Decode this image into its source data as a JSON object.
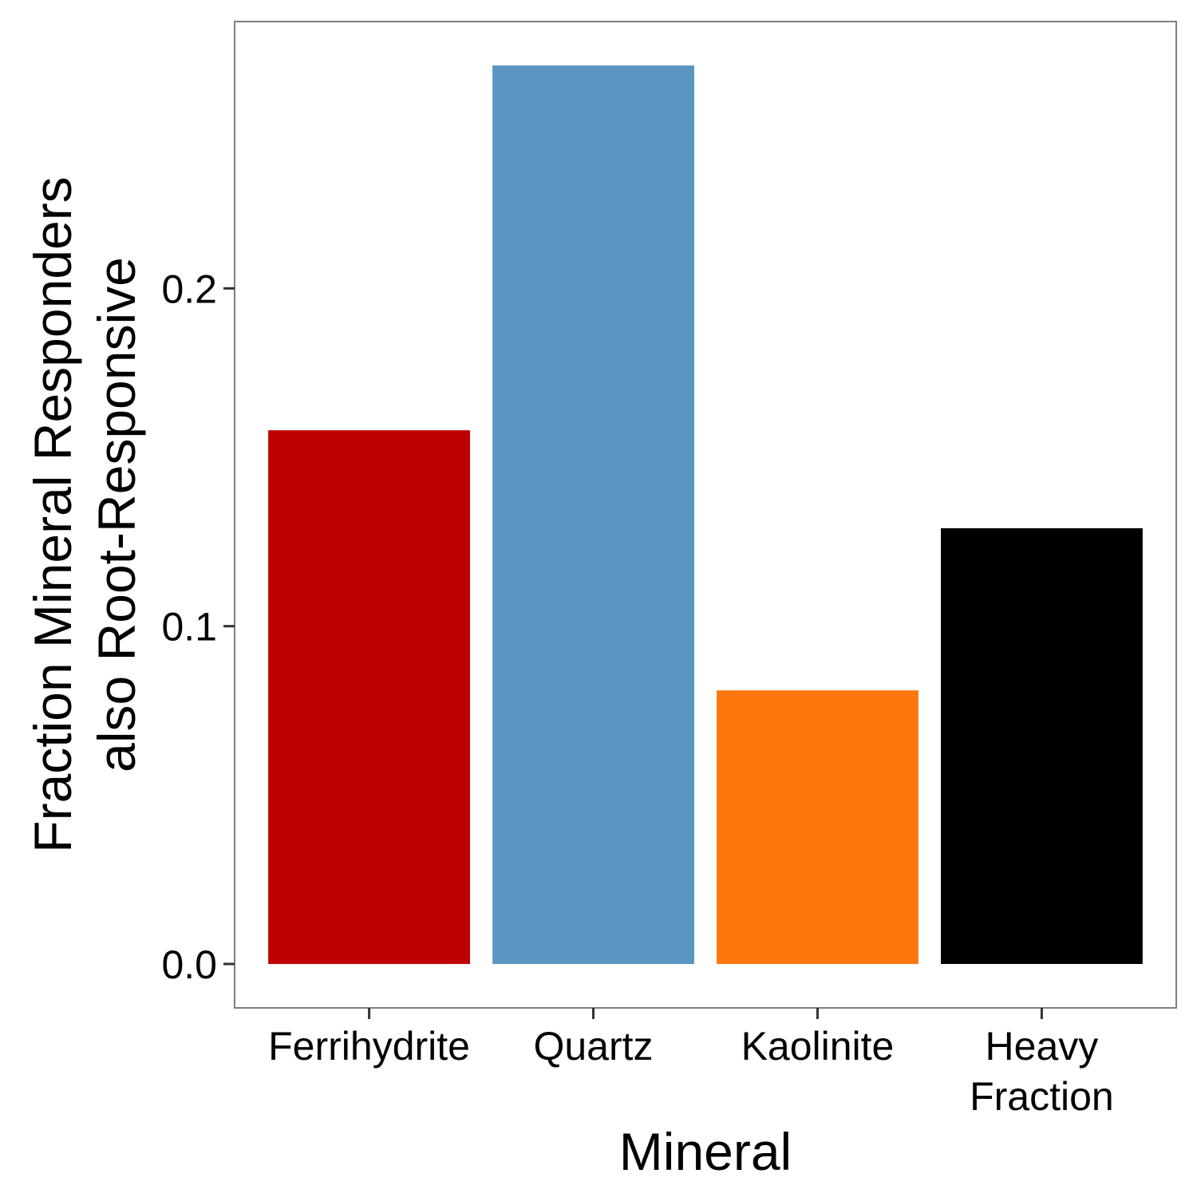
{
  "chart_data": {
    "type": "bar",
    "categories": [
      "Ferrihydrite",
      "Quartz",
      "Kaolinite",
      "Heavy Fraction"
    ],
    "category_label_lines": [
      [
        "Ferrihydrite"
      ],
      [
        "Quartz"
      ],
      [
        "Kaolinite"
      ],
      [
        "Heavy",
        "Fraction"
      ]
    ],
    "values": [
      0.158,
      0.266,
      0.081,
      0.129
    ],
    "colors": [
      "#bf0000",
      "#5b96c2",
      "#fc780f",
      "#000000"
    ],
    "xlabel": "Mineral",
    "ylabel_lines": [
      "Fraction Mineral Responders",
      "also Root-Responsive"
    ],
    "ylim": [
      -0.013,
      0.279
    ],
    "yticks": [
      0.0,
      0.1,
      0.2
    ],
    "ytick_labels": [
      "0.0",
      "0.1",
      "0.2"
    ],
    "grid": false,
    "legend": "none",
    "panel_border_color": "#7f7f7f"
  }
}
